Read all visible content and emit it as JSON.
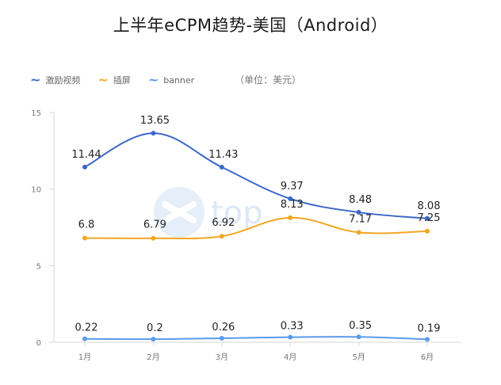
{
  "title": "上半年eCPM趋势-美国（Android）",
  "unit_note": "（单位：美元）",
  "watermark": "top",
  "chart_data": {
    "type": "line",
    "categories": [
      "1月",
      "2月",
      "3月",
      "4月",
      "5月",
      "6月"
    ],
    "ylim": [
      0,
      15
    ],
    "yticks": [
      0,
      5,
      10,
      15
    ],
    "grid": false,
    "legend_position": "top-left",
    "series": [
      {
        "name": "激励视频",
        "color": "#3b67c6",
        "values": [
          11.44,
          13.65,
          11.43,
          9.37,
          8.48,
          8.08
        ]
      },
      {
        "name": "插屏",
        "color": "#f2a623",
        "values": [
          6.8,
          6.79,
          6.92,
          8.13,
          7.17,
          7.25
        ]
      },
      {
        "name": "banner",
        "color": "#5b9bea",
        "values": [
          0.22,
          0.2,
          0.26,
          0.33,
          0.35,
          0.19
        ]
      }
    ]
  }
}
